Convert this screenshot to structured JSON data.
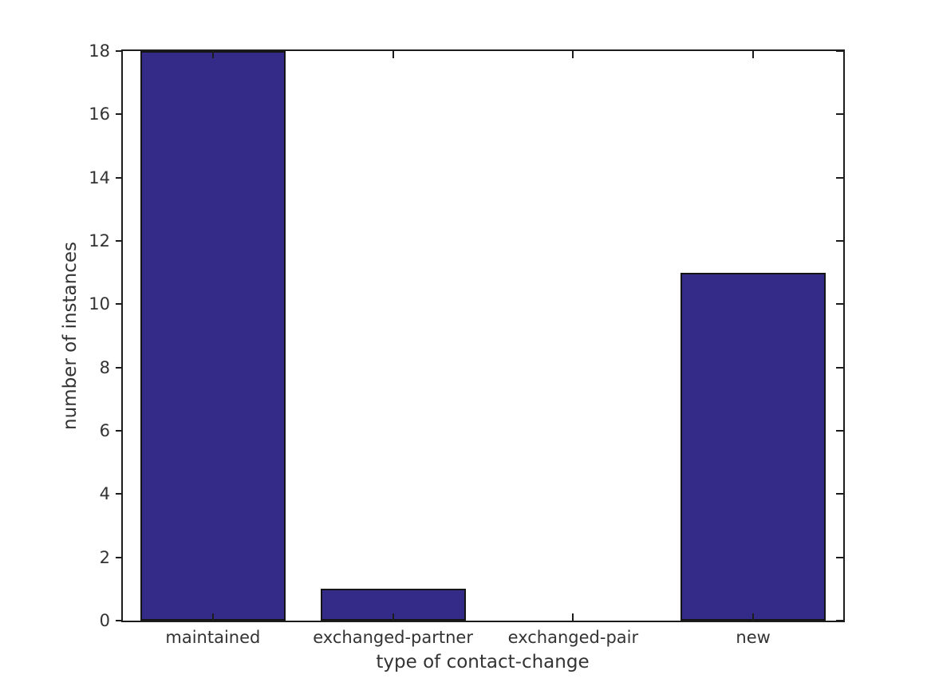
{
  "chart_data": {
    "type": "bar",
    "title": "",
    "xlabel": "type of contact-change",
    "ylabel": "number of instances",
    "categories": [
      "maintained",
      "exchanged-partner",
      "exchanged-pair",
      "new"
    ],
    "values": [
      18,
      1,
      0,
      11
    ],
    "ylim": [
      0,
      18
    ],
    "yticks": [
      0,
      2,
      4,
      6,
      8,
      10,
      12,
      14,
      16,
      18
    ],
    "grid": false,
    "legend": "none",
    "colors": {
      "bar_fill": "#342b88",
      "bar_edge": "#151515",
      "axis": "#1c1c1c",
      "text": "#333333",
      "background": "#ffffff"
    }
  }
}
